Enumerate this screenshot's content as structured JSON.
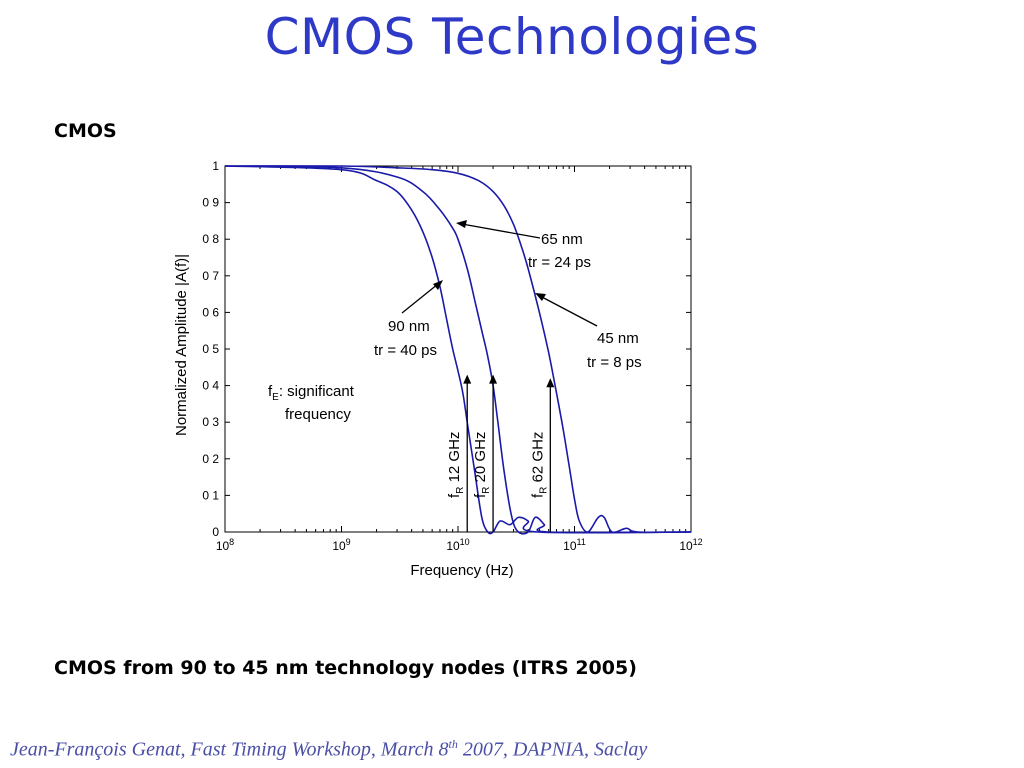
{
  "slide": {
    "title": "CMOS Technologies",
    "section_label": "CMOS",
    "caption": "CMOS from 90 to 45 nm technology nodes (ITRS 2005)",
    "footer": {
      "prefix": "Jean-François  Genat,   Fast Timing Workshop, March 8",
      "superscript": "th",
      "suffix": " 2007, DAPNIA, Saclay"
    }
  },
  "colors": {
    "title": "#2f39c8",
    "curve": "#1a1aaa",
    "footer": "#4b4fa6"
  },
  "chart_data": {
    "type": "line",
    "xlabel": "Frequency (Hz)",
    "ylabel": "Normalized Amplitude |A(f)|",
    "xscale": "log",
    "xlim": [
      100000000.0,
      1000000000000.0
    ],
    "ylim": [
      0,
      1
    ],
    "x_ticks": [
      {
        "base": "10",
        "exp": "8",
        "value": 100000000.0
      },
      {
        "base": "10",
        "exp": "9",
        "value": 1000000000.0
      },
      {
        "base": "10",
        "exp": "10",
        "value": 10000000000.0
      },
      {
        "base": "10",
        "exp": "11",
        "value": 100000000000.0
      },
      {
        "base": "10",
        "exp": "12",
        "value": 1000000000000.0
      }
    ],
    "y_ticks": [
      {
        "label": "0",
        "value": 0
      },
      {
        "label": "0 1",
        "value": 0.1
      },
      {
        "label": "0 2",
        "value": 0.2
      },
      {
        "label": "0 3",
        "value": 0.3
      },
      {
        "label": "0 4",
        "value": 0.4
      },
      {
        "label": "0 5",
        "value": 0.5
      },
      {
        "label": "0 6",
        "value": 0.6
      },
      {
        "label": "0 7",
        "value": 0.7
      },
      {
        "label": "0 8",
        "value": 0.8
      },
      {
        "label": "0 9",
        "value": 0.9
      },
      {
        "label": "1",
        "value": 1
      }
    ],
    "series": [
      {
        "x": [
          100000000.0,
          1000000000.0,
          2000000000.0,
          3000000000.0,
          4000000000.0,
          5000000000.0,
          6000000000.0,
          7000000000.0,
          8000000000.0,
          9000000000.0,
          10000000000.0,
          11000000000.0,
          12000000000.0,
          14000000000.0,
          16000000000.0,
          18000000000.0,
          20000000000.0,
          23000000000.0,
          28000000000.0,
          33000000000.0,
          40000000000.0,
          48000000000.0,
          1000000000000.0
        ],
        "y": [
          1,
          0.99,
          0.96,
          0.93,
          0.88,
          0.82,
          0.75,
          0.67,
          0.58,
          0.5,
          0.44,
          0.38,
          0.3,
          0.16,
          0.04,
          0,
          0,
          0.03,
          0.02,
          0.04,
          0.03,
          0,
          0
        ]
      },
      {
        "x": [
          100000000.0,
          1000000000.0,
          3000000000.0,
          5000000000.0,
          7000000000.0,
          9000000000.0,
          10000000000.0,
          12000000000.0,
          14000000000.0,
          16000000000.0,
          18000000000.0,
          20000000000.0,
          22000000000.0,
          25000000000.0,
          29000000000.0,
          33000000000.0,
          40000000000.0,
          46000000000.0,
          55000000000.0,
          60000000000.0,
          1000000000000.0
        ],
        "y": [
          1,
          0.995,
          0.97,
          0.93,
          0.88,
          0.83,
          0.8,
          0.72,
          0.63,
          0.55,
          0.48,
          0.4,
          0.3,
          0.16,
          0.04,
          0,
          0,
          0.04,
          0.02,
          0,
          0
        ]
      },
      {
        "x": [
          100000000.0,
          1000000000.0,
          3000000000.0,
          6000000000.0,
          10000000000.0,
          15000000000.0,
          20000000000.0,
          25000000000.0,
          30000000000.0,
          35000000000.0,
          40000000000.0,
          50000000000.0,
          60000000000.0,
          70000000000.0,
          80000000000.0,
          90000000000.0,
          100000000000.0,
          110000000000.0,
          130000000000.0,
          160000000000.0,
          180000000000.0,
          210000000000.0,
          280000000000.0,
          350000000000.0,
          1000000000000.0
        ],
        "y": [
          1,
          1,
          0.995,
          0.99,
          0.98,
          0.96,
          0.93,
          0.89,
          0.84,
          0.78,
          0.72,
          0.6,
          0.49,
          0.38,
          0.28,
          0.18,
          0.09,
          0.03,
          0,
          0.04,
          0.04,
          0,
          0.01,
          0,
          0
        ]
      }
    ],
    "annotations": {
      "node_65": {
        "line1": "65 nm",
        "line2": "tr = 24 ps"
      },
      "node_90": {
        "line1": "90 nm",
        "line2": "tr = 40 ps"
      },
      "node_45": {
        "line1": "45 nm",
        "line2": "tr = 8 ps"
      },
      "significant": {
        "line1_symbol": "f",
        "line1_sub": "E",
        "line1_rest": ": significant",
        "line2": "frequency"
      }
    },
    "markers": [
      {
        "x": 12000000000.0,
        "y": 0.43,
        "symbol": "f",
        "sub": "R",
        "value": " 12 GHz"
      },
      {
        "x": 20000000000.0,
        "y": 0.43,
        "symbol": "f",
        "sub": "R",
        "value": " 20 GHz"
      },
      {
        "x": 62000000000.0,
        "y": 0.42,
        "symbol": "f",
        "sub": "R",
        "value": " 62 GHz"
      }
    ]
  }
}
